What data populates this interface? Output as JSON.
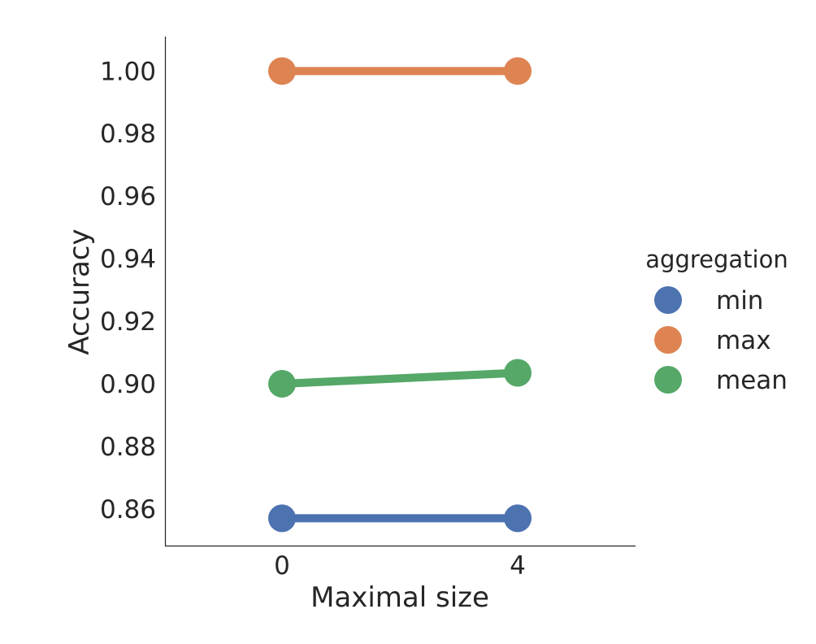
{
  "chart_data": {
    "type": "line",
    "title": "",
    "xlabel": "Maximal size",
    "ylabel": "Accuracy",
    "categories": [
      "0",
      "4"
    ],
    "ylim": [
      0.848,
      1.011
    ],
    "yticks": [
      "0.86",
      "0.88",
      "0.90",
      "0.92",
      "0.94",
      "0.96",
      "0.98",
      "1.00"
    ],
    "grid": false,
    "legend": {
      "title": "aggregation",
      "placement": "right"
    },
    "series": [
      {
        "name": "min",
        "color": "#4c72b0",
        "values": [
          0.857,
          0.857
        ]
      },
      {
        "name": "max",
        "color": "#dd8452",
        "values": [
          1.0,
          1.0
        ]
      },
      {
        "name": "mean",
        "color": "#55a868",
        "values": [
          0.9,
          0.9035
        ]
      }
    ]
  }
}
